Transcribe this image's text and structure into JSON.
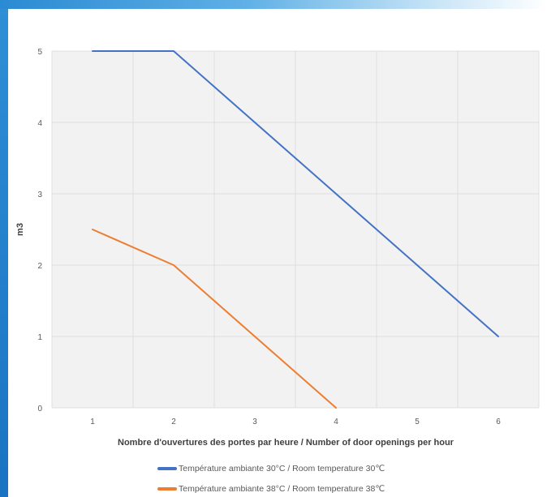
{
  "chart_data": {
    "type": "line",
    "x": [
      1,
      2,
      3,
      4,
      5,
      6
    ],
    "xlabel": "Nombre d'ouvertures des portes par heure / Number of door openings per hour",
    "ylabel": "m3",
    "xlim": [
      0.5,
      6.5
    ],
    "ylim": [
      0,
      5
    ],
    "yticks": [
      "0",
      "1",
      "2",
      "3",
      "4",
      "5"
    ],
    "xticks": [
      "1",
      "2",
      "3",
      "4",
      "5",
      "6"
    ],
    "grid": true,
    "legend_position": "bottom",
    "series": [
      {
        "name": "Température ambiante 30°C / Room temperature 30℃",
        "x": [
          1,
          2,
          3,
          4,
          5,
          6
        ],
        "values": [
          5,
          5,
          4,
          3,
          2,
          1
        ],
        "color": "#4472c4"
      },
      {
        "name": "Température ambiante 38°C / Room temperature 38℃",
        "x": [
          1,
          2,
          3,
          4
        ],
        "values": [
          2.5,
          2,
          1,
          0
        ],
        "color": "#ed7d31"
      }
    ]
  },
  "colors": {
    "plot_background": "#f2f2f2",
    "gridline": "#d9d9d9",
    "frame_accent": "#1a73c2"
  }
}
